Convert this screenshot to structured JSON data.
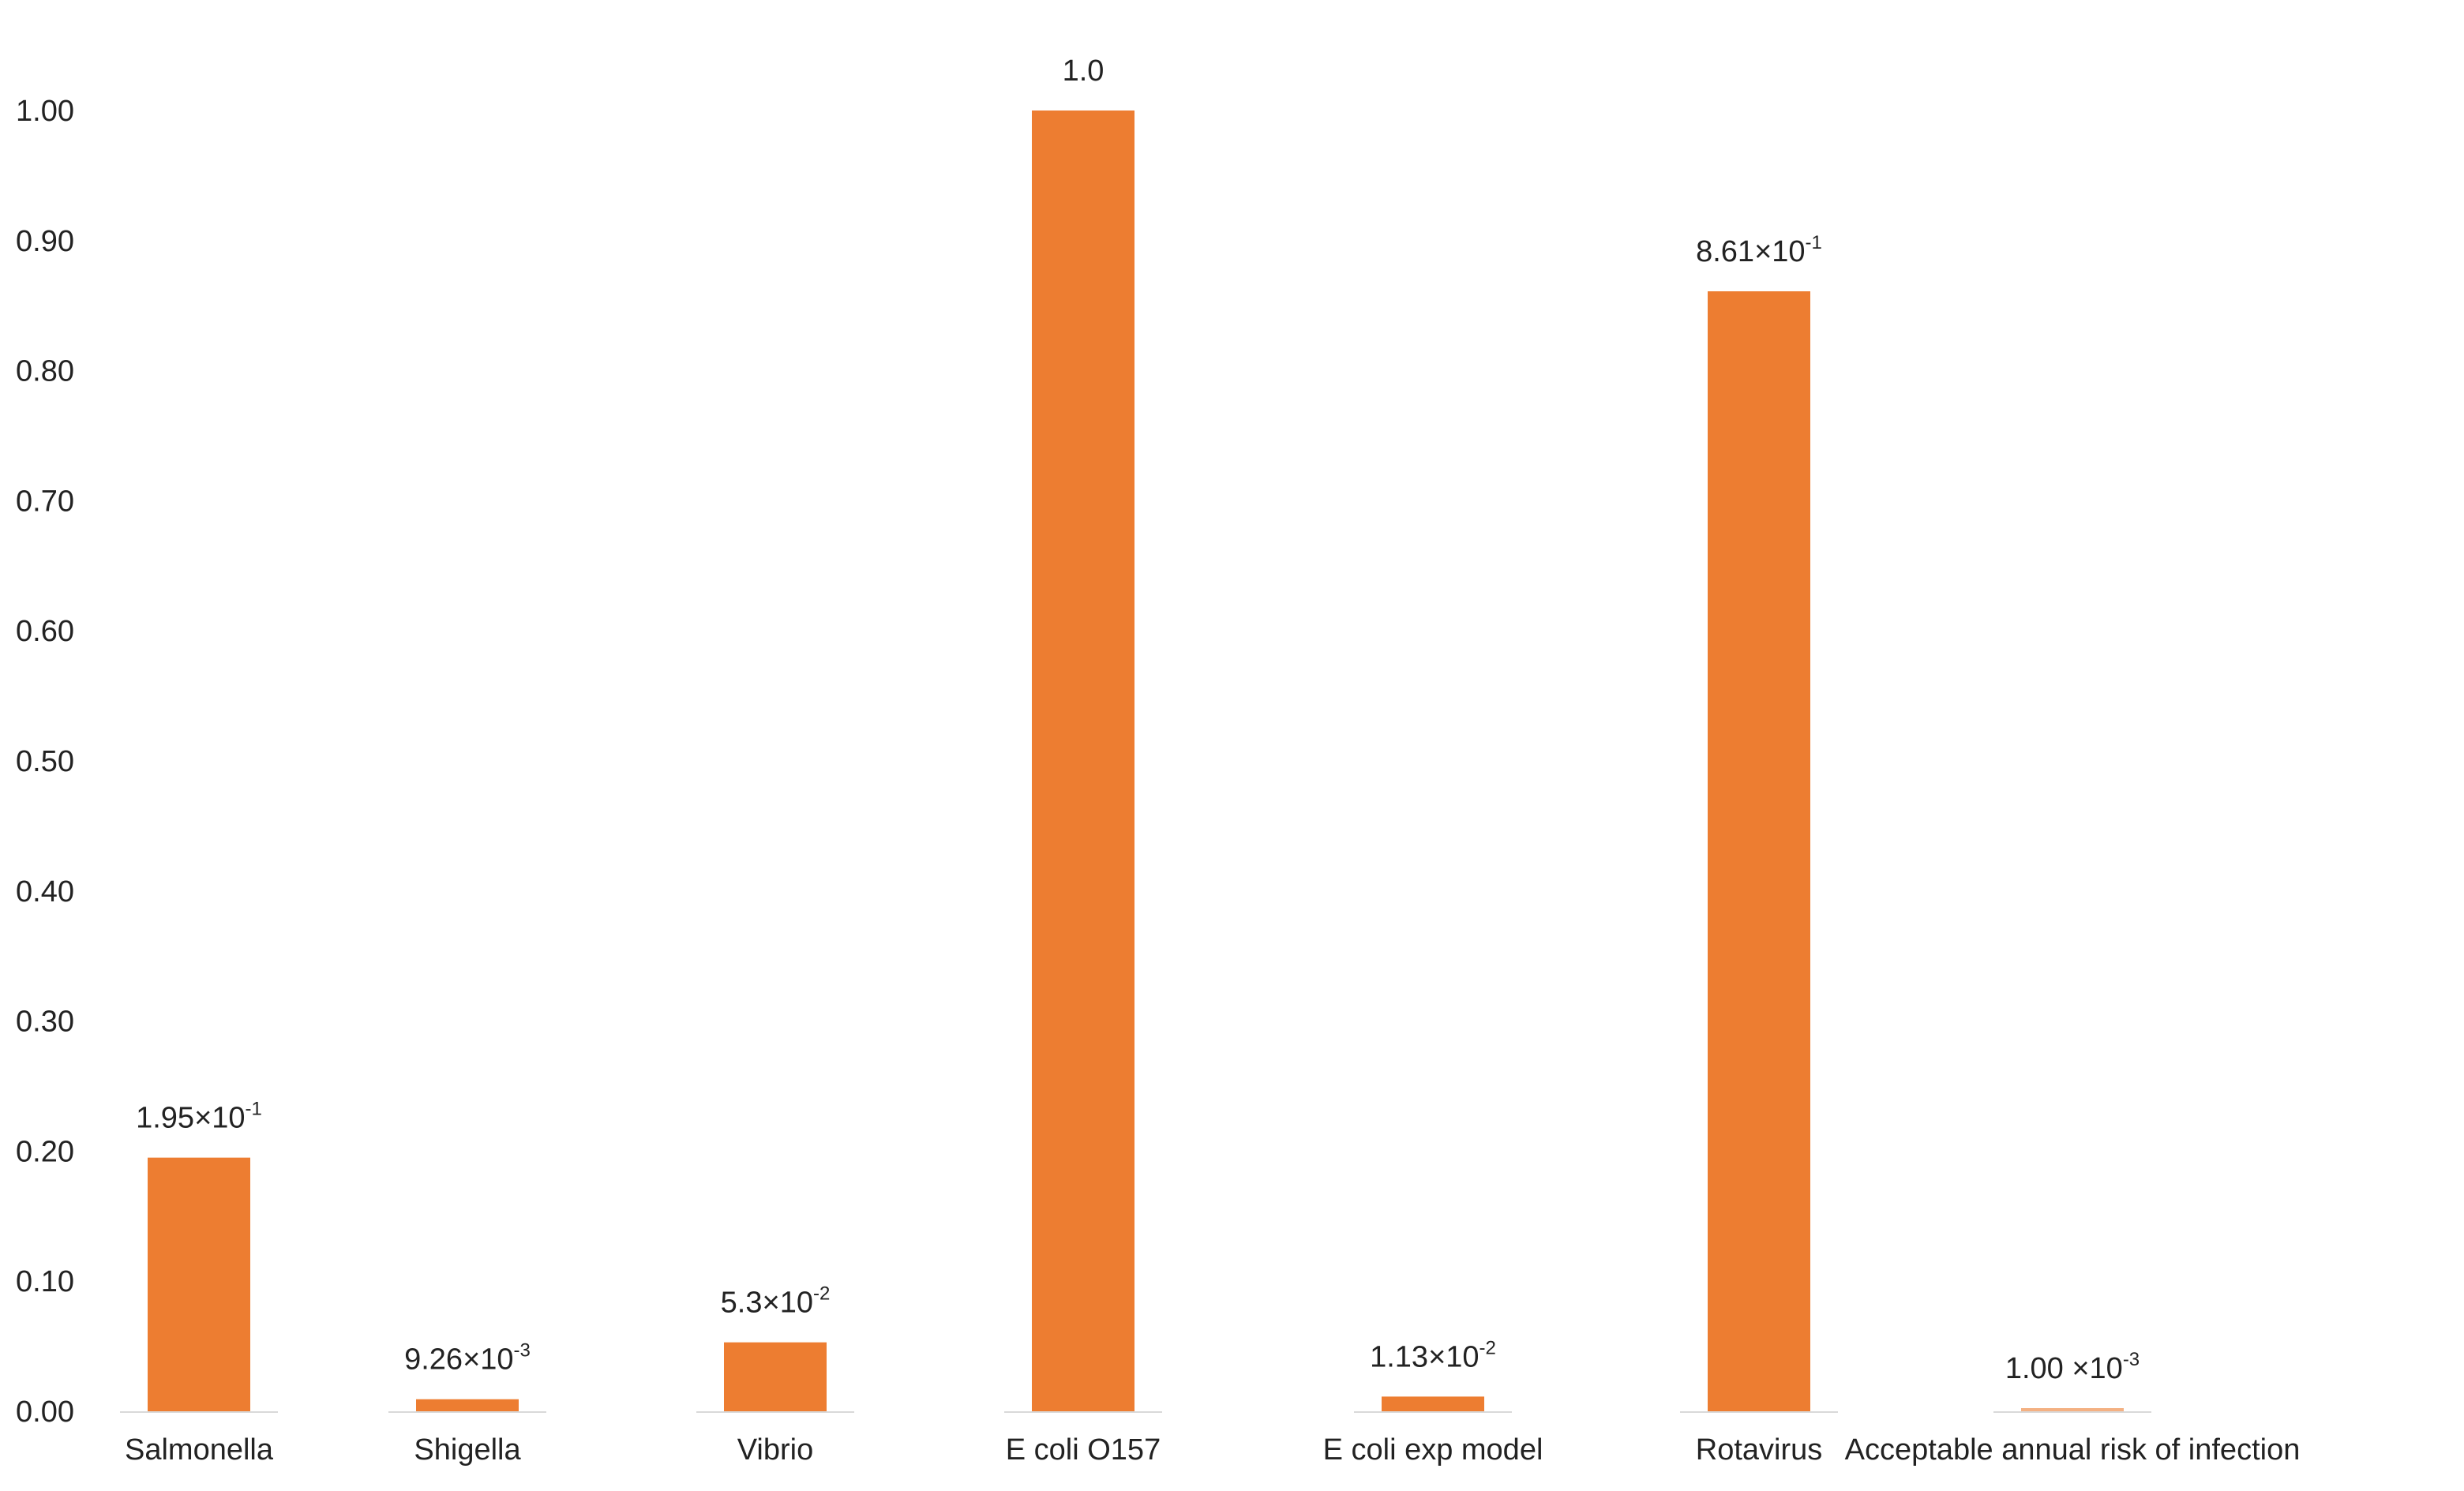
{
  "chart_data": {
    "type": "bar",
    "title": "",
    "xlabel": "",
    "ylabel": "",
    "ylim": [
      0,
      1.0
    ],
    "yticks": [
      "0.00",
      "0.10",
      "0.20",
      "0.30",
      "0.40",
      "0.50",
      "0.60",
      "0.70",
      "0.80",
      "0.90",
      "1.00"
    ],
    "grid": false,
    "legend": "none",
    "categories": [
      "Salmonella",
      "Shigella",
      "Vibrio",
      "E coli O157",
      "E coli exp model",
      "Rotavirus",
      "Acceptable annual risk of infection"
    ],
    "values": [
      0.195,
      0.00926,
      0.053,
      1.0,
      0.0113,
      0.861,
      0.001
    ],
    "data_labels": [
      {
        "mantissa": "1.95×10",
        "exponent": "-1"
      },
      {
        "mantissa": "9.26×10",
        "exponent": "-3"
      },
      {
        "mantissa": "5.3×10",
        "exponent": "-2"
      },
      {
        "mantissa": "1.0",
        "exponent": ""
      },
      {
        "mantissa": "1.13×10",
        "exponent": "-2"
      },
      {
        "mantissa": "8.61×10",
        "exponent": "-1"
      },
      {
        "mantissa": "1.00 ×10",
        "exponent": "-3"
      }
    ],
    "colors": {
      "bar": "#ed7d31",
      "bar_last": "#f4b183",
      "baseline": "#d9d9d9"
    }
  }
}
